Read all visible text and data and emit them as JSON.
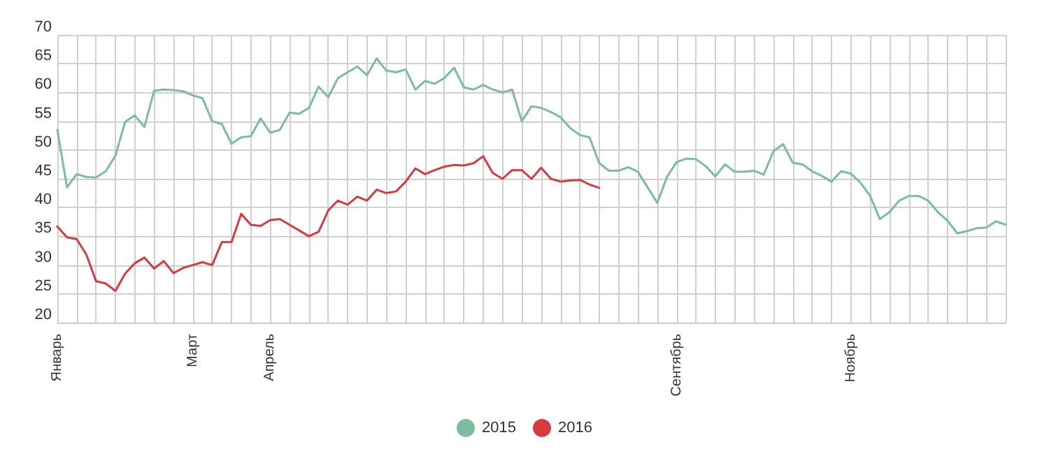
{
  "chart_data": {
    "type": "line",
    "categories": [
      "Январь",
      null,
      null,
      null,
      null,
      null,
      null,
      null,
      null,
      null,
      null,
      null,
      null,
      null,
      "Март",
      null,
      null,
      null,
      null,
      null,
      null,
      null,
      "Апрель",
      null,
      null,
      null,
      null,
      null,
      null,
      null,
      null,
      null,
      null,
      null,
      null,
      null,
      null,
      null,
      null,
      null,
      null,
      null,
      null,
      null,
      null,
      null,
      null,
      null,
      null,
      null,
      null,
      null,
      null,
      null,
      null,
      null,
      null,
      null,
      null,
      null,
      null,
      null,
      null,
      null,
      "Сентябрь",
      null,
      null,
      null,
      null,
      null,
      null,
      null,
      null,
      null,
      null,
      null,
      null,
      null,
      null,
      null,
      null,
      null,
      "Ноябрь",
      null,
      null,
      null,
      null,
      null,
      null,
      null,
      null,
      null,
      null,
      null,
      null,
      null,
      null,
      null,
      null
    ],
    "series": [
      {
        "name": "2015",
        "color": "#7dbc9e",
        "values": [
          53.5,
          43.5,
          45.8,
          45.3,
          45.2,
          46.3,
          49,
          54.9,
          56,
          54,
          60.3,
          60.5,
          60.4,
          60.2,
          59.5,
          59,
          55,
          54.5,
          51.1,
          52.2,
          52.4,
          55.5,
          53,
          53.5,
          56.5,
          56.3,
          57.3,
          61,
          59.2,
          62.5,
          63.5,
          64.5,
          63,
          65.9,
          63.8,
          63.5,
          64,
          60.5,
          62,
          61.5,
          62.5,
          64.3,
          60.9,
          60.5,
          61.3,
          60.5,
          60,
          60.5,
          55,
          57.6,
          57.3,
          56.6,
          55.7,
          53.8,
          52.6,
          52.2,
          47.7,
          46.4,
          46.4,
          47,
          46.2,
          43.5,
          40.8,
          45.3,
          47.9,
          48.5,
          48.4,
          47.2,
          45.4,
          47.5,
          46.2,
          46.2,
          46.4,
          45.7,
          49.8,
          51,
          47.8,
          47.5,
          46.3,
          45.5,
          44.5,
          46.3,
          45.9,
          44.3,
          42,
          38,
          39.2,
          41.2,
          42,
          42,
          41.2,
          39.2,
          37.7,
          35.5,
          35.9,
          36.4,
          36.5,
          37.6,
          37
        ]
      },
      {
        "name": "2016",
        "color": "#d93a40",
        "values": [
          36.7,
          34.8,
          34.5,
          31.8,
          27.2,
          26.8,
          25.5,
          28.5,
          30.3,
          31.3,
          29.4,
          30.7,
          28.6,
          29.5,
          30,
          30.5,
          30,
          34,
          34,
          38.9,
          37,
          36.8,
          37.8,
          38,
          37,
          36,
          35,
          35.8,
          39.5,
          41.2,
          40.5,
          41.9,
          41.2,
          43.1,
          42.5,
          42.8,
          44.5,
          46.8,
          45.8,
          46.5,
          47.1,
          47.4,
          47.3,
          47.7,
          48.9,
          46,
          45,
          46.5,
          46.5,
          45,
          46.9,
          45,
          44.5,
          44.7,
          44.8,
          44,
          43.4,
          null,
          null,
          null,
          null,
          null,
          null,
          null,
          null,
          null,
          null,
          null,
          null,
          null,
          null,
          null,
          null,
          null,
          null,
          null,
          null,
          null,
          null,
          null,
          null,
          null,
          null,
          null,
          null,
          null,
          null,
          null,
          null,
          null,
          null,
          null,
          null,
          null,
          null,
          null,
          null,
          null,
          null
        ]
      }
    ],
    "ylim": [
      20,
      70
    ],
    "yticks": [
      20,
      25,
      30,
      35,
      40,
      45,
      50,
      55,
      60,
      65,
      70
    ],
    "grid": true,
    "legend": "bottom",
    "marker": "none"
  }
}
